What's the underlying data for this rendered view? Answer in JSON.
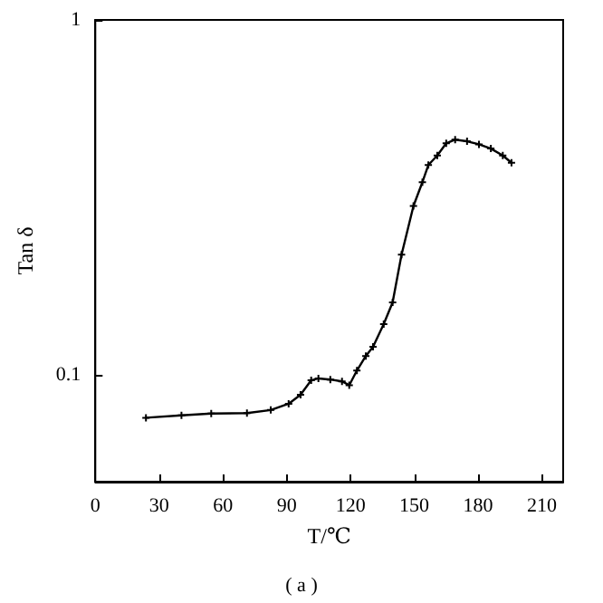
{
  "chart_data": {
    "type": "line",
    "xlabel": "T/℃",
    "ylabel": "Tan δ",
    "annotations": [
      "( a )"
    ],
    "x": [
      23.8,
      40.5,
      54.5,
      71.3,
      82.5,
      90.9,
      96.5,
      101.5,
      104.9,
      110.5,
      116,
      119.4,
      123,
      127.2,
      130.6,
      135.6,
      139.8,
      144,
      149.6,
      153.8,
      156.6,
      160.8,
      165,
      169.2,
      174.8,
      180.4,
      186,
      191.6,
      195.7
    ],
    "series": [
      {
        "color": "#000000",
        "values": [
          0.0757,
          0.0769,
          0.0778,
          0.078,
          0.0796,
          0.0829,
          0.0879,
          0.0965,
          0.0977,
          0.097,
          0.0958,
          0.0935,
          0.1028,
          0.113,
          0.12,
          0.139,
          0.16,
          0.218,
          0.299,
          0.349,
          0.39,
          0.415,
          0.449,
          0.46,
          0.455,
          0.446,
          0.434,
          0.415,
          0.396
        ]
      }
    ],
    "xlim": [
      0,
      220
    ],
    "xticks": [
      0,
      30,
      60,
      90,
      120,
      150,
      180,
      210
    ],
    "ylim": [
      0.05,
      1
    ],
    "yticks": [
      0.1,
      1
    ],
    "log": "y",
    "grid": false,
    "marker": "cross",
    "line_style": "solid"
  }
}
